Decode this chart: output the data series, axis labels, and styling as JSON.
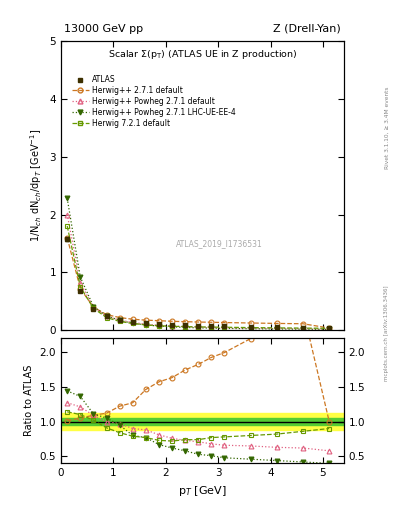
{
  "title_top": "13000 GeV pp",
  "title_right": "Z (Drell-Yan)",
  "ylabel_main": "1/N$_{ch}$ dN$_{ch}$/dp$_T$ [GeV$^{-1}$]",
  "ylabel_ratio": "Ratio to ATLAS",
  "xlabel": "p$_T$ [GeV]",
  "watermark": "ATLAS_2019_I1736531",
  "right_label": "Rivet 3.1.10, ≥ 3.4M events",
  "arxiv_label": "mcplots.cern.ch [arXiv:1306.3436]",
  "atlas_x": [
    0.12,
    0.37,
    0.62,
    0.87,
    1.12,
    1.37,
    1.62,
    1.87,
    2.12,
    2.37,
    2.62,
    2.87,
    3.12,
    3.62,
    4.12,
    4.62,
    5.12
  ],
  "atlas_y": [
    1.58,
    0.68,
    0.37,
    0.24,
    0.18,
    0.15,
    0.12,
    0.105,
    0.095,
    0.085,
    0.078,
    0.072,
    0.067,
    0.057,
    0.05,
    0.043,
    0.038
  ],
  "atlas_err": [
    0.03,
    0.012,
    0.008,
    0.005,
    0.004,
    0.003,
    0.003,
    0.002,
    0.002,
    0.002,
    0.002,
    0.002,
    0.002,
    0.001,
    0.001,
    0.001,
    0.001
  ],
  "atlas_band_green": 0.05,
  "atlas_band_yellow": 0.12,
  "hw271_x": [
    0.12,
    0.37,
    0.62,
    0.87,
    1.12,
    1.37,
    1.62,
    1.87,
    2.12,
    2.37,
    2.62,
    2.87,
    3.12,
    3.62,
    4.12,
    4.62,
    5.12
  ],
  "hw271_y": [
    1.6,
    0.72,
    0.4,
    0.27,
    0.22,
    0.19,
    0.175,
    0.165,
    0.155,
    0.148,
    0.142,
    0.138,
    0.133,
    0.125,
    0.118,
    0.112,
    0.038
  ],
  "hw271_color": "#cc7722",
  "hwp271_x": [
    0.12,
    0.37,
    0.62,
    0.87,
    1.12,
    1.37,
    1.62,
    1.87,
    2.12,
    2.37,
    2.62,
    2.87,
    3.12,
    3.62,
    4.12,
    4.62,
    5.12
  ],
  "hwp271_y": [
    2.0,
    0.82,
    0.4,
    0.24,
    0.175,
    0.135,
    0.105,
    0.085,
    0.072,
    0.062,
    0.055,
    0.049,
    0.044,
    0.037,
    0.032,
    0.027,
    0.022
  ],
  "hwp271_color": "#e06080",
  "hwplhc_x": [
    0.12,
    0.37,
    0.62,
    0.87,
    1.12,
    1.37,
    1.62,
    1.87,
    2.12,
    2.37,
    2.62,
    2.87,
    3.12,
    3.62,
    4.12,
    4.62,
    5.12
  ],
  "hwplhc_y": [
    2.28,
    0.92,
    0.41,
    0.25,
    0.17,
    0.12,
    0.092,
    0.071,
    0.059,
    0.049,
    0.041,
    0.037,
    0.032,
    0.026,
    0.022,
    0.018,
    0.015
  ],
  "hwplhc_color": "#336600",
  "hw721_x": [
    0.12,
    0.37,
    0.62,
    0.87,
    1.12,
    1.37,
    1.62,
    1.87,
    2.12,
    2.37,
    2.62,
    2.87,
    3.12,
    3.62,
    4.12,
    4.62,
    5.12
  ],
  "hw721_y": [
    1.8,
    0.75,
    0.38,
    0.22,
    0.152,
    0.117,
    0.092,
    0.077,
    0.068,
    0.063,
    0.058,
    0.055,
    0.052,
    0.046,
    0.041,
    0.037,
    0.034
  ],
  "hw721_color": "#669900",
  "ratio_hw271": [
    1.01,
    1.05,
    1.09,
    1.12,
    1.22,
    1.27,
    1.46,
    1.57,
    1.63,
    1.74,
    1.82,
    1.92,
    1.99,
    2.19,
    2.36,
    2.6,
    1.0
  ],
  "ratio_hwp271": [
    1.27,
    1.21,
    1.09,
    1.0,
    0.97,
    0.9,
    0.88,
    0.81,
    0.76,
    0.73,
    0.71,
    0.68,
    0.66,
    0.65,
    0.63,
    0.62,
    0.58
  ],
  "ratio_hwplhc": [
    1.44,
    1.36,
    1.11,
    1.05,
    0.95,
    0.8,
    0.77,
    0.67,
    0.62,
    0.58,
    0.53,
    0.51,
    0.48,
    0.46,
    0.44,
    0.42,
    0.4
  ],
  "ratio_hw721": [
    1.14,
    1.1,
    1.02,
    0.91,
    0.84,
    0.79,
    0.77,
    0.73,
    0.72,
    0.74,
    0.74,
    0.77,
    0.78,
    0.8,
    0.82,
    0.86,
    0.9
  ],
  "ylim_main": [
    0.0,
    5.0
  ],
  "ylim_ratio": [
    0.4,
    2.2
  ],
  "xlim": [
    0.0,
    5.4
  ],
  "atlas_marker_color": "#3d3000",
  "atlas_marker": "s"
}
